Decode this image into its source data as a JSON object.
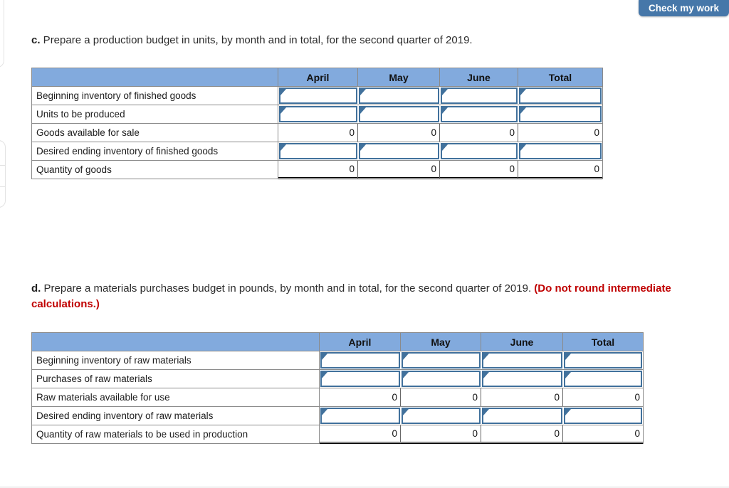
{
  "check_button": {
    "label": "Check my work"
  },
  "section_c": {
    "prefix": "c.",
    "text": " Prepare a production budget in units, by month and in total, for the second quarter of 2019."
  },
  "section_d": {
    "prefix": "d.",
    "text": " Prepare a materials purchases budget in pounds, by month and in total, for the second quarter of 2019. ",
    "warning": "(Do not round intermediate calculations.)"
  },
  "production_table": {
    "columns": [
      "April",
      "May",
      "June",
      "Total"
    ],
    "rows": [
      {
        "label": "Beginning inventory of finished goods",
        "type": "input",
        "values": [
          "",
          "",
          "",
          ""
        ]
      },
      {
        "label": "Units to be produced",
        "type": "input",
        "values": [
          "",
          "",
          "",
          ""
        ]
      },
      {
        "label": "Goods available for sale",
        "type": "computed",
        "values": [
          "0",
          "0",
          "0",
          "0"
        ]
      },
      {
        "label": "Desired ending inventory of finished goods",
        "type": "input",
        "values": [
          "",
          "",
          "",
          ""
        ]
      },
      {
        "label": "Quantity of goods",
        "type": "computed",
        "values": [
          "0",
          "0",
          "0",
          "0"
        ],
        "double_underline": true
      }
    ]
  },
  "materials_table": {
    "columns": [
      "April",
      "May",
      "June",
      "Total"
    ],
    "rows": [
      {
        "label": "Beginning inventory of raw materials",
        "type": "input",
        "values": [
          "",
          "",
          "",
          ""
        ]
      },
      {
        "label": "Purchases of raw materials",
        "type": "input",
        "values": [
          "",
          "",
          "",
          ""
        ]
      },
      {
        "label": "Raw materials available for use",
        "type": "computed",
        "values": [
          "0",
          "0",
          "0",
          "0"
        ]
      },
      {
        "label": "Desired ending inventory of raw materials",
        "type": "input",
        "values": [
          "",
          "",
          "",
          ""
        ]
      },
      {
        "label": "Quantity of raw materials to be used in production",
        "type": "computed",
        "values": [
          "0",
          "0",
          "0",
          "0"
        ],
        "double_underline": true
      }
    ]
  },
  "colors": {
    "table_header_bg": "#82aadd",
    "input_border_blue": "#41719c",
    "button_blue": "#4677a9",
    "warning_red": "#c00000",
    "grid_gray": "#8a8a8a"
  }
}
